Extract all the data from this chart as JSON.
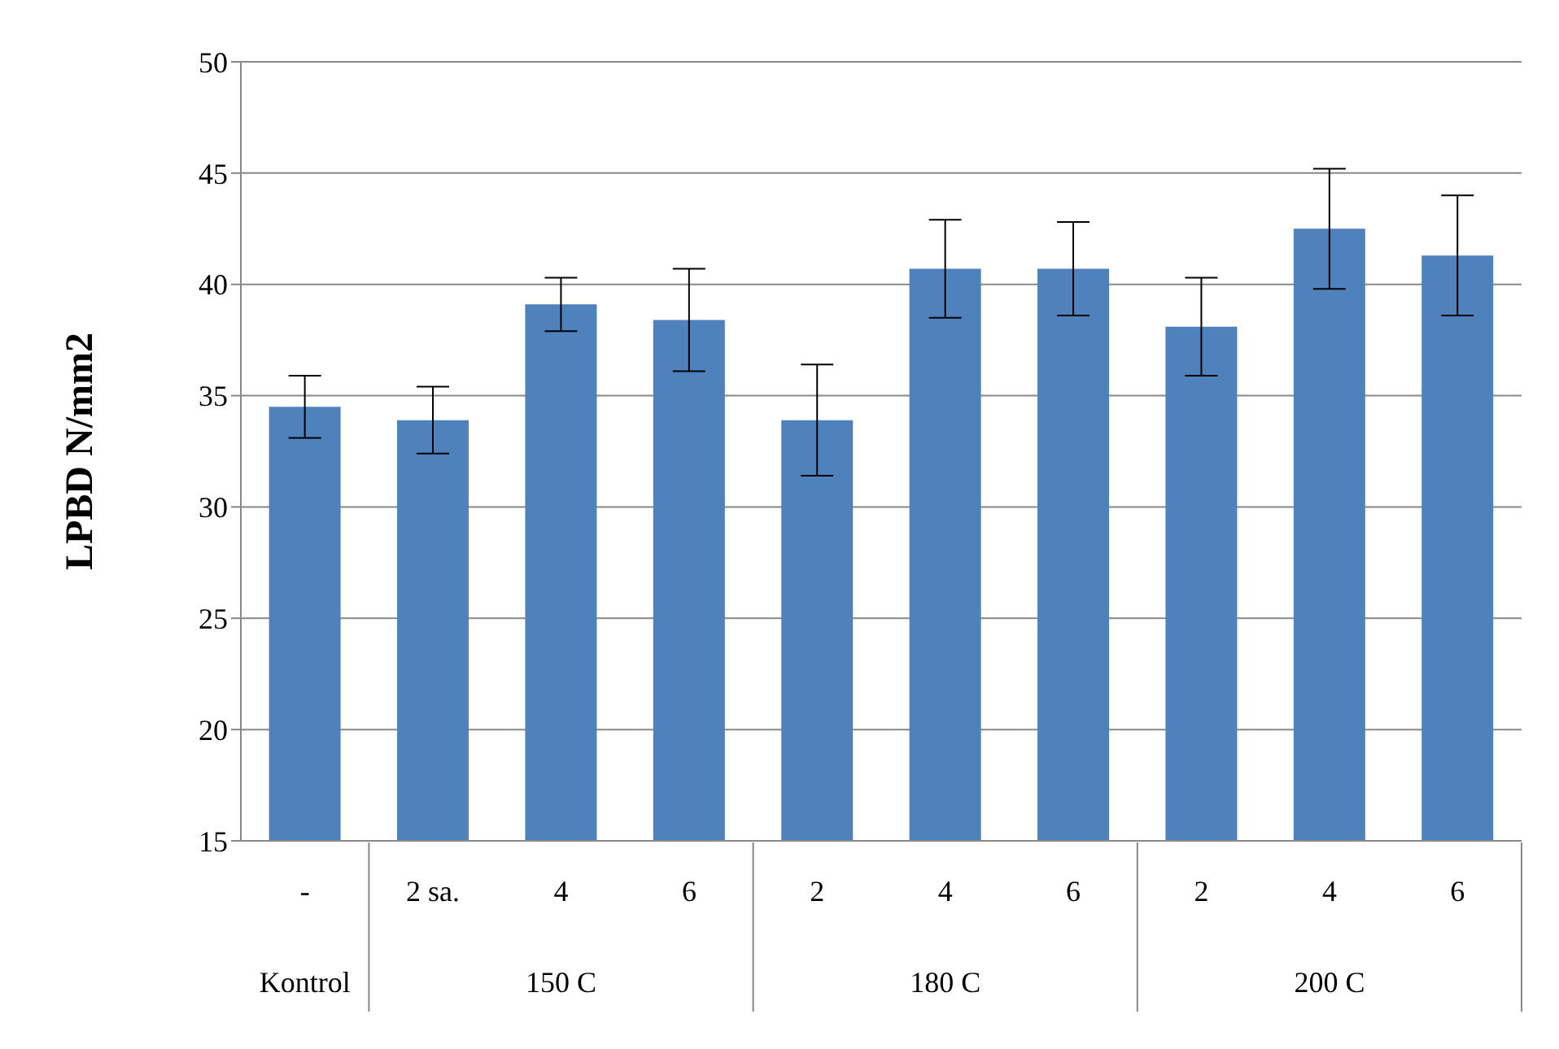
{
  "chart_data": {
    "type": "bar",
    "ylabel": "LPBD N/mm2",
    "categories": [
      "-",
      "2 sa.",
      "4",
      "6",
      "2",
      "4",
      "6",
      "2",
      "4",
      "6"
    ],
    "values": [
      34.5,
      33.9,
      39.1,
      38.4,
      33.9,
      40.7,
      40.7,
      38.1,
      42.5,
      41.3
    ],
    "errors": [
      1.4,
      1.5,
      1.2,
      2.3,
      2.5,
      2.2,
      2.1,
      2.2,
      2.7,
      2.7
    ],
    "color": "#4f81bd",
    "ylim": [
      15,
      50
    ],
    "yticks": [
      15,
      20,
      25,
      30,
      35,
      40,
      45,
      50
    ],
    "grid": "y",
    "annotations": [
      "Kontrol",
      "150 C",
      "180 C",
      "200 C"
    ]
  }
}
